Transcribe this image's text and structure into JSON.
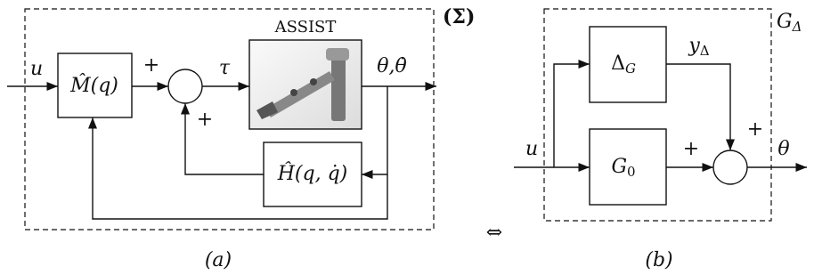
{
  "panel_a": {
    "input": "u",
    "m_block": "M̂(q)",
    "sum_plus_top": "+",
    "tau": "τ",
    "assist": "ASSIST",
    "system": "(Σ)",
    "output": "θ,θ̇",
    "sum_plus_bottom": "+",
    "h_block": "Ĥ(q, q̇)",
    "caption": "(a)"
  },
  "equivalence": "⇔",
  "panel_b": {
    "system": {
      "base": "G",
      "sub": "Δ"
    },
    "delta_block": {
      "base": "Δ",
      "sub": "G"
    },
    "y_delta": {
      "base": "y",
      "sub": "Δ"
    },
    "input": "u",
    "g0_block": {
      "base": "G",
      "sub": "0"
    },
    "plus_left": "+",
    "plus_top": "+",
    "output": "θ",
    "caption": "(b)"
  }
}
